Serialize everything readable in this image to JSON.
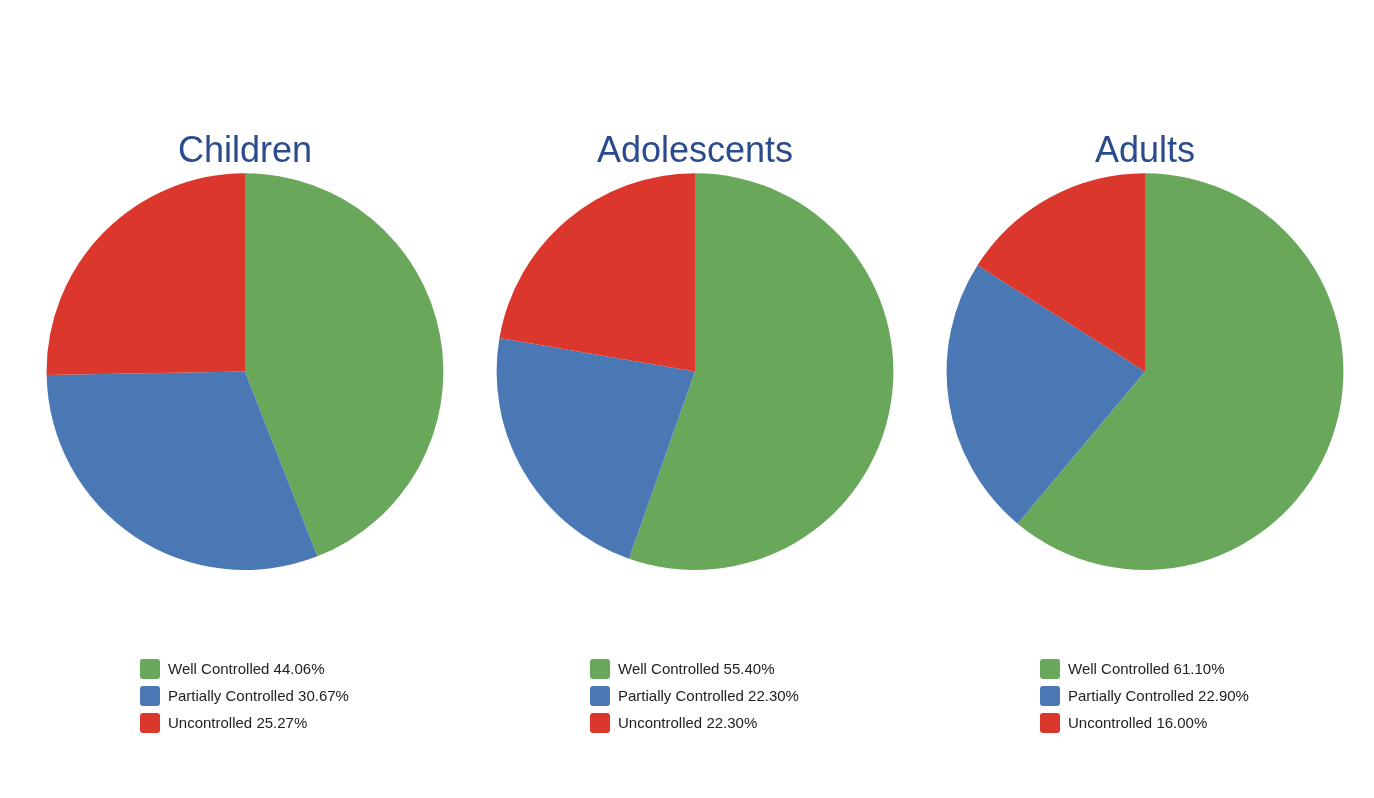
{
  "chart_data": [
    {
      "type": "pie",
      "title": "Children",
      "categories": [
        "Well Controlled",
        "Partially Controlled",
        "Uncontrolled"
      ],
      "values": [
        44.06,
        30.67,
        25.27
      ],
      "value_labels": [
        "44.06%",
        "30.67%",
        "25.27%"
      ],
      "colors": [
        "#69a75b",
        "#4a78b4",
        "#db372c"
      ],
      "legend": "bottom"
    },
    {
      "type": "pie",
      "title": "Adolescents",
      "categories": [
        "Well Controlled",
        "Partially Controlled",
        "Uncontrolled"
      ],
      "values": [
        55.4,
        22.3,
        22.3
      ],
      "value_labels": [
        "55.40%",
        "22.30%",
        "22.30%"
      ],
      "colors": [
        "#69a75b",
        "#4a78b4",
        "#db372c"
      ],
      "legend": "bottom"
    },
    {
      "type": "pie",
      "title": "Adults",
      "categories": [
        "Well Controlled",
        "Partially Controlled",
        "Uncontrolled"
      ],
      "values": [
        61.1,
        22.9,
        16.0
      ],
      "value_labels": [
        "61.10%",
        "22.90%",
        "16.00%"
      ],
      "colors": [
        "#69a75b",
        "#4a78b4",
        "#db372c"
      ],
      "legend": "bottom"
    }
  ]
}
